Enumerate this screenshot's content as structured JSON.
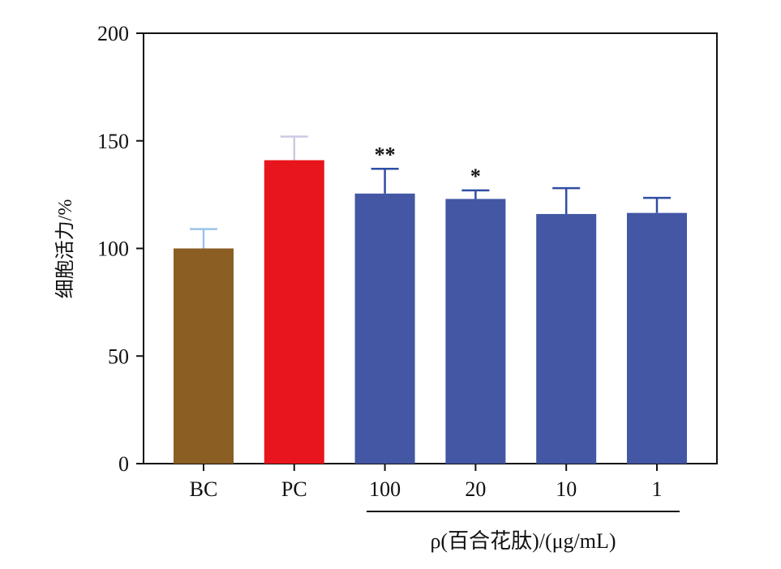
{
  "chart_data": {
    "type": "bar",
    "categories": [
      "BC",
      "PC",
      "100",
      "20",
      "10",
      "1"
    ],
    "values": [
      100,
      141,
      125.5,
      123,
      116,
      116.5
    ],
    "errors": [
      9,
      11,
      11.5,
      4,
      12,
      7
    ],
    "significance": [
      "",
      "",
      "**",
      "*",
      "",
      ""
    ],
    "bar_colors": [
      "#8b5e24",
      "#e8161c",
      "#4457a5",
      "#4457a5",
      "#4457a5",
      "#4457a5"
    ],
    "error_colors": [
      "#9dc3ea",
      "#cfc7e3",
      "#2f4da3",
      "#2f4da3",
      "#2f4da3",
      "#2f4da3"
    ],
    "ylabel": "细胞活力/%",
    "group_label": "ρ(百合花肽)/(μg/mL)",
    "ylim": [
      0,
      200
    ],
    "yticks": [
      0,
      50,
      100,
      150,
      200
    ],
    "grid": false,
    "legend": "none"
  }
}
